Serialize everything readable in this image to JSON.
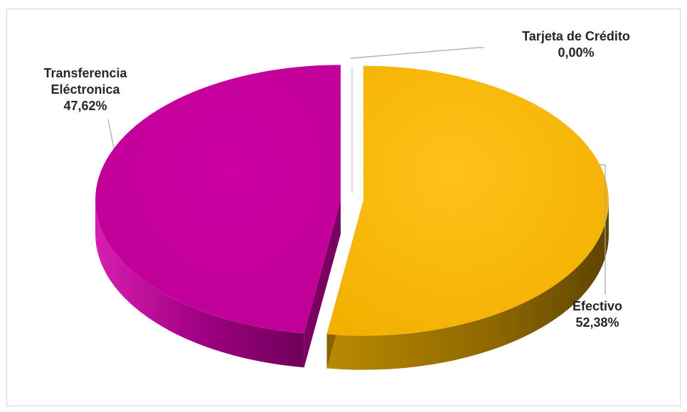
{
  "chart_data": {
    "type": "pie",
    "style": "3d-exploded",
    "slices": [
      {
        "name": "Efectivo",
        "value": 52.38,
        "value_label": "52,38%",
        "color": "#f5b800",
        "side_color": "#8a6300"
      },
      {
        "name": "Tarjeta de Crédito",
        "value": 0.0,
        "value_label": "0,00%",
        "color": "#b0b0b0",
        "side_color": "#808080"
      },
      {
        "name": "Transferencia Eléctronica",
        "value": 47.62,
        "value_label": "47,62%",
        "color": "#c8009e",
        "side_color": "#7a0062"
      }
    ],
    "legend": "none",
    "data_labels": "category-and-percent"
  },
  "labels": {
    "transferencia": {
      "line1": "Transferencia",
      "line2": "Eléctronica",
      "pct": "47,62%"
    },
    "tarjeta": {
      "line1": "Tarjeta de Crédito",
      "pct": "0,00%"
    },
    "efectivo": {
      "line1": "Efectivo",
      "pct": "52,38%"
    }
  }
}
